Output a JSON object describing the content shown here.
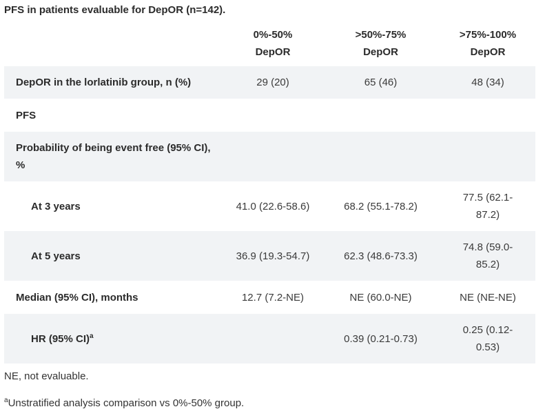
{
  "title": "PFS in patients evaluable for DepOR (n=142).",
  "table": {
    "headers": [
      {
        "line1": "",
        "line2": ""
      },
      {
        "line1": "0%-50%",
        "line2": "DepOR"
      },
      {
        "line1": ">50%-75%",
        "line2": "DepOR"
      },
      {
        "line1": ">75%-100%",
        "line2": "DepOR"
      }
    ],
    "rows": [
      {
        "label": "DepOR in the lorlatinib group, n (%)",
        "values": [
          "29 (20)",
          "65 (46)",
          "48 (34)"
        ]
      },
      {
        "label": "PFS",
        "values": [
          "",
          "",
          ""
        ]
      },
      {
        "label": "Probability of being event free (95% CI), %",
        "values": [
          "",
          "",
          ""
        ]
      },
      {
        "label": "At 3 years",
        "values": [
          "41.0 (22.6-58.6)",
          "68.2 (55.1-78.2)",
          "77.5 (62.1-87.2)"
        ]
      },
      {
        "label": "At 5 years",
        "values": [
          "36.9 (19.3-54.7)",
          "62.3 (48.6-73.3)",
          "74.8 (59.0-85.2)"
        ]
      },
      {
        "label": "Median (95% CI), months",
        "values": [
          "12.7 (7.2-NE)",
          "NE (60.0-NE)",
          "NE (NE-NE)"
        ]
      },
      {
        "label": "HR (95% CI)",
        "label_sup": "a",
        "values": [
          "",
          "0.39 (0.21-0.73)",
          "0.25 (0.12-0.53)"
        ]
      }
    ]
  },
  "footnotes": {
    "ne": "NE, not evaluable.",
    "a_marker": "a",
    "a_text": "Unstratified analysis comparison vs 0%-50% group."
  }
}
